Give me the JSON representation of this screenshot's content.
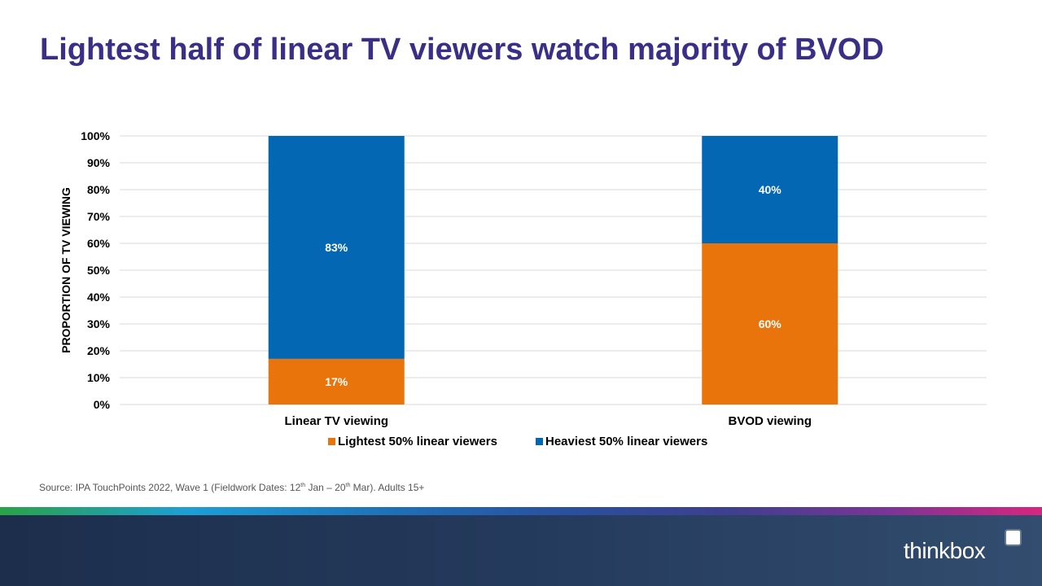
{
  "title": "Lightest half of linear TV viewers watch majority of BVOD",
  "source": {
    "prefix": "Source: IPA TouchPoints 2022, Wave 1 (Fieldwork Dates: 12",
    "sup1": "th",
    "middle": " Jan – 20",
    "sup2": "th",
    "suffix": " Mar). Adults 15+"
  },
  "logo": {
    "text": "thinkbox"
  },
  "colors": {
    "title": "#3a2f87",
    "lightest": "#e8740b",
    "heaviest": "#0467b3"
  },
  "chart_data": {
    "type": "bar",
    "stacked": true,
    "title": "",
    "xlabel": "",
    "ylabel": "PROPORTION OF  TV VIEWING",
    "ylim": [
      0,
      100
    ],
    "yticks": [
      0,
      10,
      20,
      30,
      40,
      50,
      60,
      70,
      80,
      90,
      100
    ],
    "ytick_labels": [
      "0%",
      "10%",
      "20%",
      "30%",
      "40%",
      "50%",
      "60%",
      "70%",
      "80%",
      "90%",
      "100%"
    ],
    "categories": [
      "Linear TV viewing",
      "BVOD viewing"
    ],
    "series": [
      {
        "name": "Lightest 50% linear viewers",
        "color": "#e8740b",
        "values": [
          17,
          60
        ],
        "labels": [
          "17%",
          "60%"
        ]
      },
      {
        "name": "Heaviest 50% linear viewers",
        "color": "#0467b3",
        "values": [
          83,
          40
        ],
        "labels": [
          "83%",
          "40%"
        ]
      }
    ],
    "grid": true,
    "legend": "bottom"
  }
}
